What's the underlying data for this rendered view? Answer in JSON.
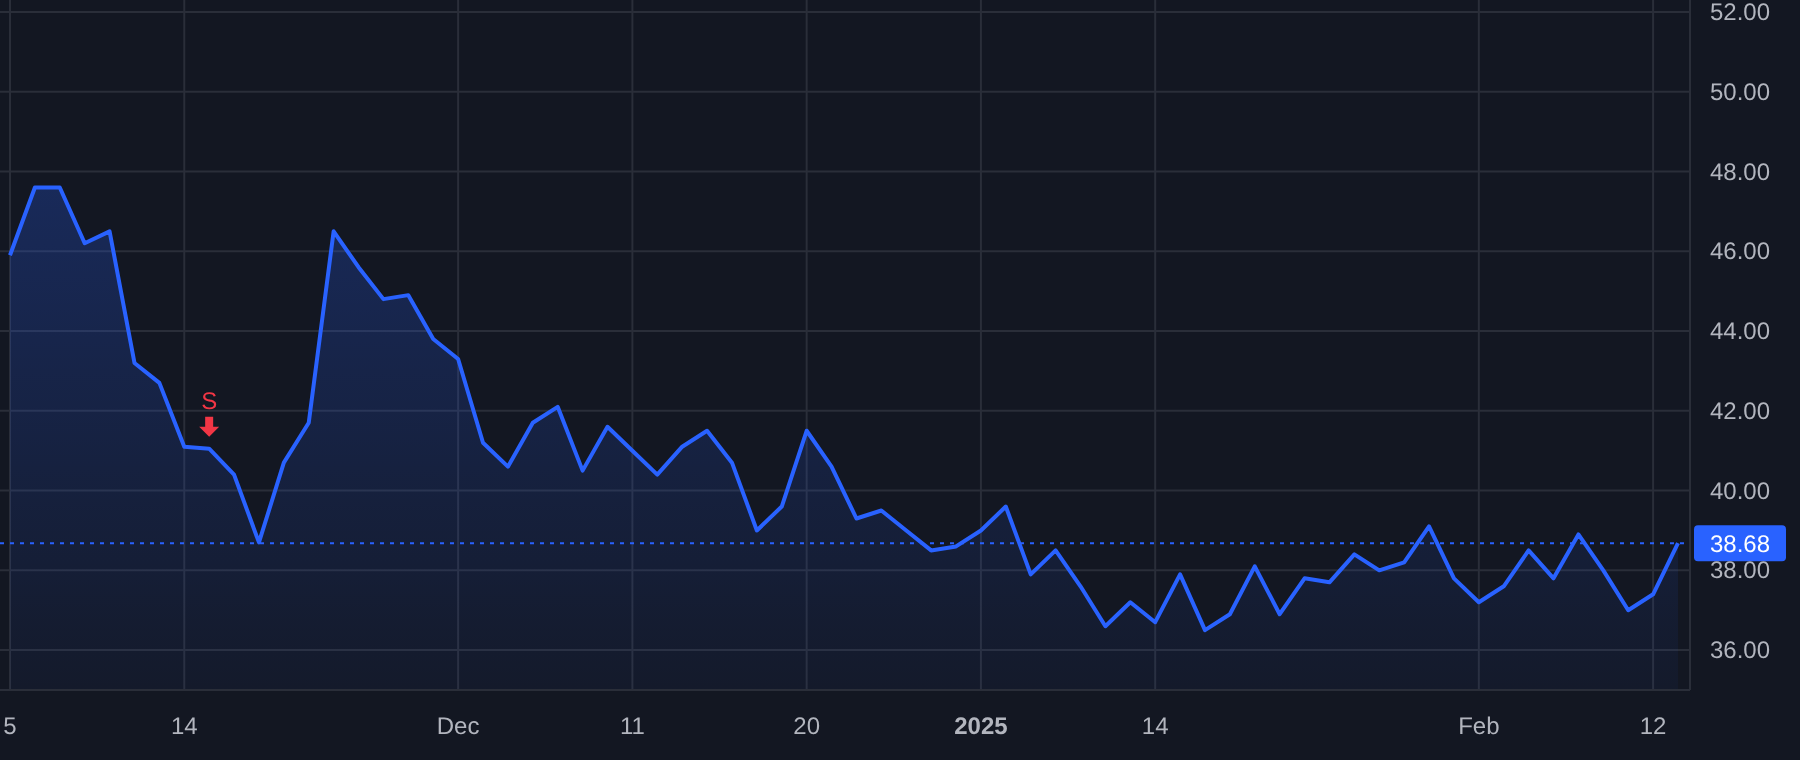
{
  "chart_data": {
    "type": "area",
    "color": "#2962ff",
    "grid": true,
    "categories": [
      "5",
      null,
      null,
      null,
      null,
      null,
      null,
      "14",
      null,
      null,
      null,
      null,
      null,
      null,
      null,
      null,
      null,
      null,
      "Dec",
      null,
      null,
      null,
      null,
      null,
      null,
      "11",
      null,
      null,
      null,
      null,
      null,
      null,
      "20",
      null,
      null,
      null,
      null,
      null,
      null,
      "2025",
      null,
      null,
      null,
      null,
      null,
      null,
      "14",
      null,
      null,
      null,
      null,
      null,
      null,
      null,
      null,
      null,
      null,
      null,
      null,
      "Feb",
      null,
      null,
      null,
      null,
      null,
      null,
      "12",
      null
    ],
    "values": [
      45.9,
      47.6,
      47.6,
      46.2,
      46.5,
      43.2,
      42.7,
      41.1,
      41.05,
      40.4,
      38.7,
      40.7,
      41.7,
      46.5,
      45.6,
      44.8,
      44.9,
      43.8,
      43.3,
      41.2,
      40.6,
      41.7,
      42.1,
      40.5,
      41.6,
      41.0,
      40.4,
      41.1,
      41.5,
      40.7,
      39.0,
      39.6,
      41.5,
      40.6,
      39.3,
      39.5,
      39.0,
      38.5,
      38.6,
      39.0,
      39.6,
      37.9,
      38.5,
      37.6,
      36.6,
      37.2,
      36.7,
      37.9,
      36.5,
      36.9,
      38.1,
      36.9,
      37.8,
      37.7,
      38.4,
      38.0,
      38.2,
      39.1,
      37.8,
      37.2,
      37.6,
      38.5,
      37.8,
      38.9,
      38.0,
      37.0,
      37.4,
      38.68
    ],
    "ylim": [
      35,
      52.3
    ],
    "yticks": [
      {
        "value": 36,
        "label": "36.00"
      },
      {
        "value": 38,
        "label": "38.00"
      },
      {
        "value": 40,
        "label": "40.00"
      },
      {
        "value": 42,
        "label": "42.00"
      },
      {
        "value": 44,
        "label": "44.00"
      },
      {
        "value": 46,
        "label": "46.00"
      },
      {
        "value": 48,
        "label": "48.00"
      },
      {
        "value": 50,
        "label": "50.00"
      },
      {
        "value": 52,
        "label": "52.00"
      }
    ],
    "ref_lines": [
      {
        "axis": "y",
        "value": 38.68,
        "label": "38.68",
        "color": "#2962ff",
        "line_style": "dotted"
      }
    ],
    "annotations": [
      {
        "text": "S",
        "y": 41.05
      }
    ]
  }
}
